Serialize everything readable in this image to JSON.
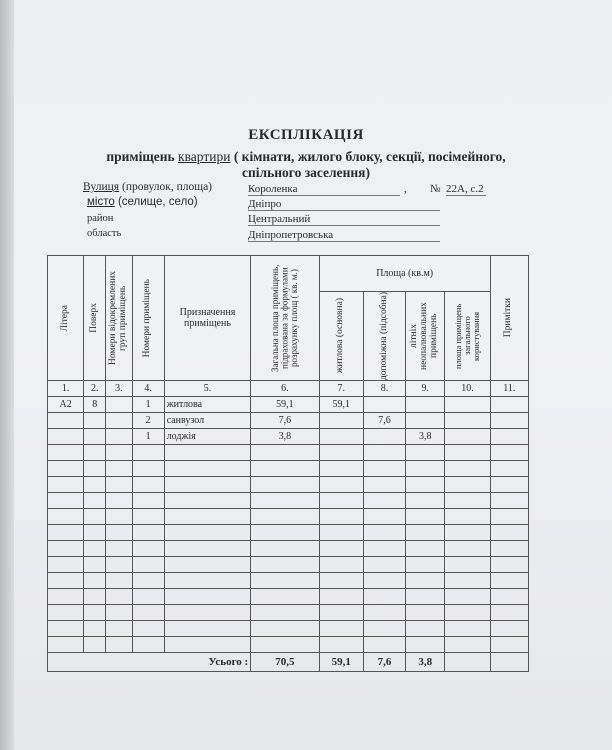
{
  "document": {
    "title": "ЕКСПЛІКАЦІЯ",
    "subtitle_prefix": "приміщень",
    "subtitle_type": "квартири",
    "subtitle_rest": "( кімнати, жилого блоку, секції, посімейного,",
    "subtitle_line2": "спільного заселення)"
  },
  "address": {
    "street_label_u": "Вулиця",
    "street_label": "(провулок, площа)",
    "street_value": "Короленка",
    "number_label": "№",
    "number_value": "22А, с.2",
    "city_label_u": "місто",
    "city_label": "(селище, село)",
    "city_value": "Дніпро",
    "district_label": "район",
    "district_value": "Центральний",
    "region_label": "область",
    "region_value": "Дніпропетровська"
  },
  "table": {
    "headers": {
      "litera": "Літера",
      "poverkh": "Поверх",
      "group_numbers": "Номери відокремлених груп приміщень",
      "room_numbers": "Номери приміщень",
      "purpose": "Призначення приміщень",
      "total_area": "Загальна площа приміщень, підрахована за формулами розрахунку площ ( кв. м.)",
      "area_group": "Площа (кв.м)",
      "living": "житлова (основна)",
      "auxiliary": "допоміжна (підсобна)",
      "summer": "літніх неопалювальних приміщень",
      "common": "площа приміщень загального користування",
      "notes": "Примітки"
    },
    "column_numbers": [
      "1.",
      "2.",
      "3.",
      "4.",
      "5.",
      "6.",
      "7.",
      "8.",
      "9.",
      "10.",
      "11."
    ],
    "rows": [
      [
        "А2",
        "8",
        "",
        "1",
        "житлова",
        "59,1",
        "59,1",
        "",
        "",
        "",
        ""
      ],
      [
        "",
        "",
        "",
        "2",
        "санвузол",
        "7,6",
        "",
        "7,6",
        "",
        "",
        ""
      ],
      [
        "",
        "",
        "",
        "1",
        "лоджія",
        "3,8",
        "",
        "",
        "3,8",
        "",
        ""
      ]
    ],
    "total": {
      "label": "Усього :",
      "total_area": "70,5",
      "living": "59,1",
      "auxiliary": "7,6",
      "summer": "3,8",
      "common": "",
      "notes": ""
    }
  }
}
